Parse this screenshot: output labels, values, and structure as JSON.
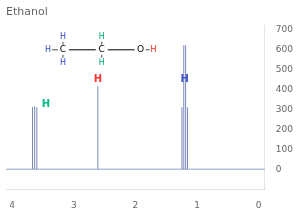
{
  "chart_data": {
    "type": "stem",
    "title": "Ethanol",
    "xlim": [
      4.1,
      -0.1
    ],
    "ylim": [
      -100,
      720
    ],
    "xticks": [
      4,
      3,
      2,
      1,
      0
    ],
    "yticks": [
      0,
      100,
      200,
      300,
      400,
      500,
      600,
      700
    ],
    "grid": false,
    "color": "#7788bb",
    "baseline": 0,
    "series": [
      {
        "x": [
          2.61
        ],
        "values": [
          415
        ]
      },
      {
        "x": [
          1.155,
          1.185,
          1.215,
          1.245
        ],
        "values": [
          310,
          620,
          620,
          310
        ]
      },
      {
        "x": [
          3.6,
          3.635,
          3.67
        ],
        "values": [
          310,
          315,
          310
        ]
      }
    ],
    "annotations": [
      {
        "text": "H",
        "x": 2.61,
        "y": 425,
        "color": "#ff3333"
      },
      {
        "text": "H",
        "x": 1.2,
        "y": 425,
        "color": "#4455cc"
      },
      {
        "text": "H",
        "x": 3.45,
        "y": 300,
        "color": "#00bb88"
      }
    ],
    "molecule": [
      {
        "label": "C",
        "hydrogens": [
          "H",
          "H",
          "H"
        ],
        "color": "#3344cc"
      },
      {
        "label": "C",
        "hydrogens": [
          "H",
          "H"
        ],
        "color": "#00aa77"
      },
      {
        "label": "O",
        "hydrogens": [
          "H"
        ],
        "color": "#ee2222"
      }
    ]
  }
}
